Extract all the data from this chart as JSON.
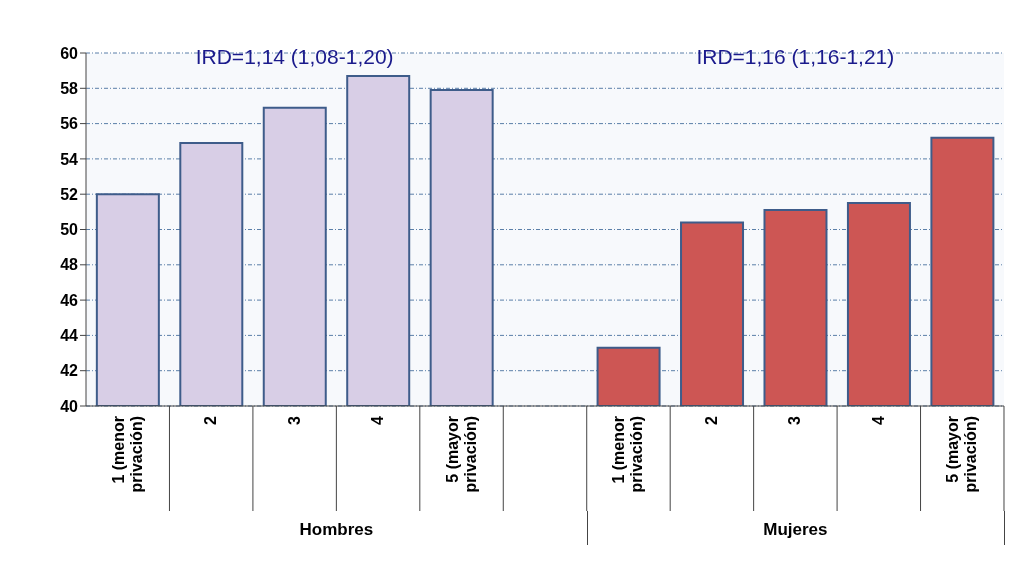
{
  "chart_data": {
    "type": "bar",
    "categories": [
      "1 (menor privación)",
      "2",
      "3",
      "4",
      "5 (mayor privación)",
      null,
      "1 (menor privación)",
      "2",
      "3",
      "4",
      "5 (mayor privación)"
    ],
    "series": [
      {
        "color": "#d8cee6",
        "values": [
          52.0,
          54.9,
          56.9,
          58.7,
          57.9,
          null,
          null,
          null,
          null,
          null,
          null
        ]
      },
      {
        "color": "#cd5654",
        "values": [
          null,
          null,
          null,
          null,
          null,
          null,
          43.3,
          50.4,
          51.1,
          51.5,
          55.2
        ]
      }
    ],
    "annotations": [
      "IRD=1,14 (1,08-1,20)",
      "IRD=1,16 (1,16-1,21)",
      "Hombres",
      "Mujeres"
    ],
    "ylim": [
      40,
      60
    ],
    "yticks": [
      40,
      42,
      44,
      46,
      48,
      50,
      52,
      54,
      56,
      58,
      60
    ],
    "grid": "y",
    "legend": false
  }
}
